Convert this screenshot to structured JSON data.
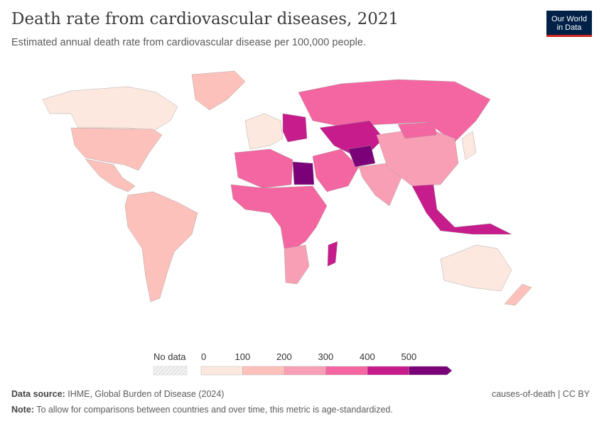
{
  "title": "Death rate from cardiovascular diseases, 2021",
  "subtitle": "Estimated annual death rate from cardiovascular disease per 100,000 people.",
  "logo": {
    "line1": "Our World",
    "line2": "in Data"
  },
  "legend": {
    "no_data": "No data",
    "ticks": [
      "0",
      "100",
      "200",
      "300",
      "400",
      "500"
    ],
    "colors": [
      "#fde8e0",
      "#fcc1bb",
      "#f99fb5",
      "#f466a1",
      "#c71c8b",
      "#7a0177"
    ],
    "no_data_color": "#eee"
  },
  "footer": {
    "source_label": "Data source:",
    "source": "IHME, Global Burden of Disease (2024)",
    "note_label": "Note:",
    "note": "To allow for comparisons between countries and over time, this metric is age-standardized.",
    "license": "causes-of-death | CC BY"
  },
  "chart_data": {
    "type": "choropleth",
    "title": "Death rate from cardiovascular diseases, 2021",
    "unit": "deaths per 100,000",
    "bins": [
      0,
      100,
      200,
      300,
      400,
      500
    ],
    "regions": [
      {
        "name": "Canada",
        "bin": 0
      },
      {
        "name": "United States",
        "bin": 1
      },
      {
        "name": "Greenland",
        "bin": 1
      },
      {
        "name": "Mexico",
        "bin": 1
      },
      {
        "name": "South America",
        "bin": 1
      },
      {
        "name": "Western Europe",
        "bin": 0
      },
      {
        "name": "Eastern Europe",
        "bin": 4
      },
      {
        "name": "Russia",
        "bin": 3
      },
      {
        "name": "Central Asia",
        "bin": 4
      },
      {
        "name": "North Africa",
        "bin": 3
      },
      {
        "name": "Egypt",
        "bin": 5
      },
      {
        "name": "Sub-Saharan Africa",
        "bin": 3
      },
      {
        "name": "Madagascar",
        "bin": 4
      },
      {
        "name": "Middle East",
        "bin": 3
      },
      {
        "name": "Afghanistan",
        "bin": 5
      },
      {
        "name": "India",
        "bin": 2
      },
      {
        "name": "China",
        "bin": 2
      },
      {
        "name": "Mongolia",
        "bin": 3
      },
      {
        "name": "Southeast Asia",
        "bin": 4
      },
      {
        "name": "Japan",
        "bin": 0
      },
      {
        "name": "Australia",
        "bin": 0
      },
      {
        "name": "New Zealand",
        "bin": 1
      },
      {
        "name": "Southern Africa",
        "bin": 2
      }
    ]
  }
}
